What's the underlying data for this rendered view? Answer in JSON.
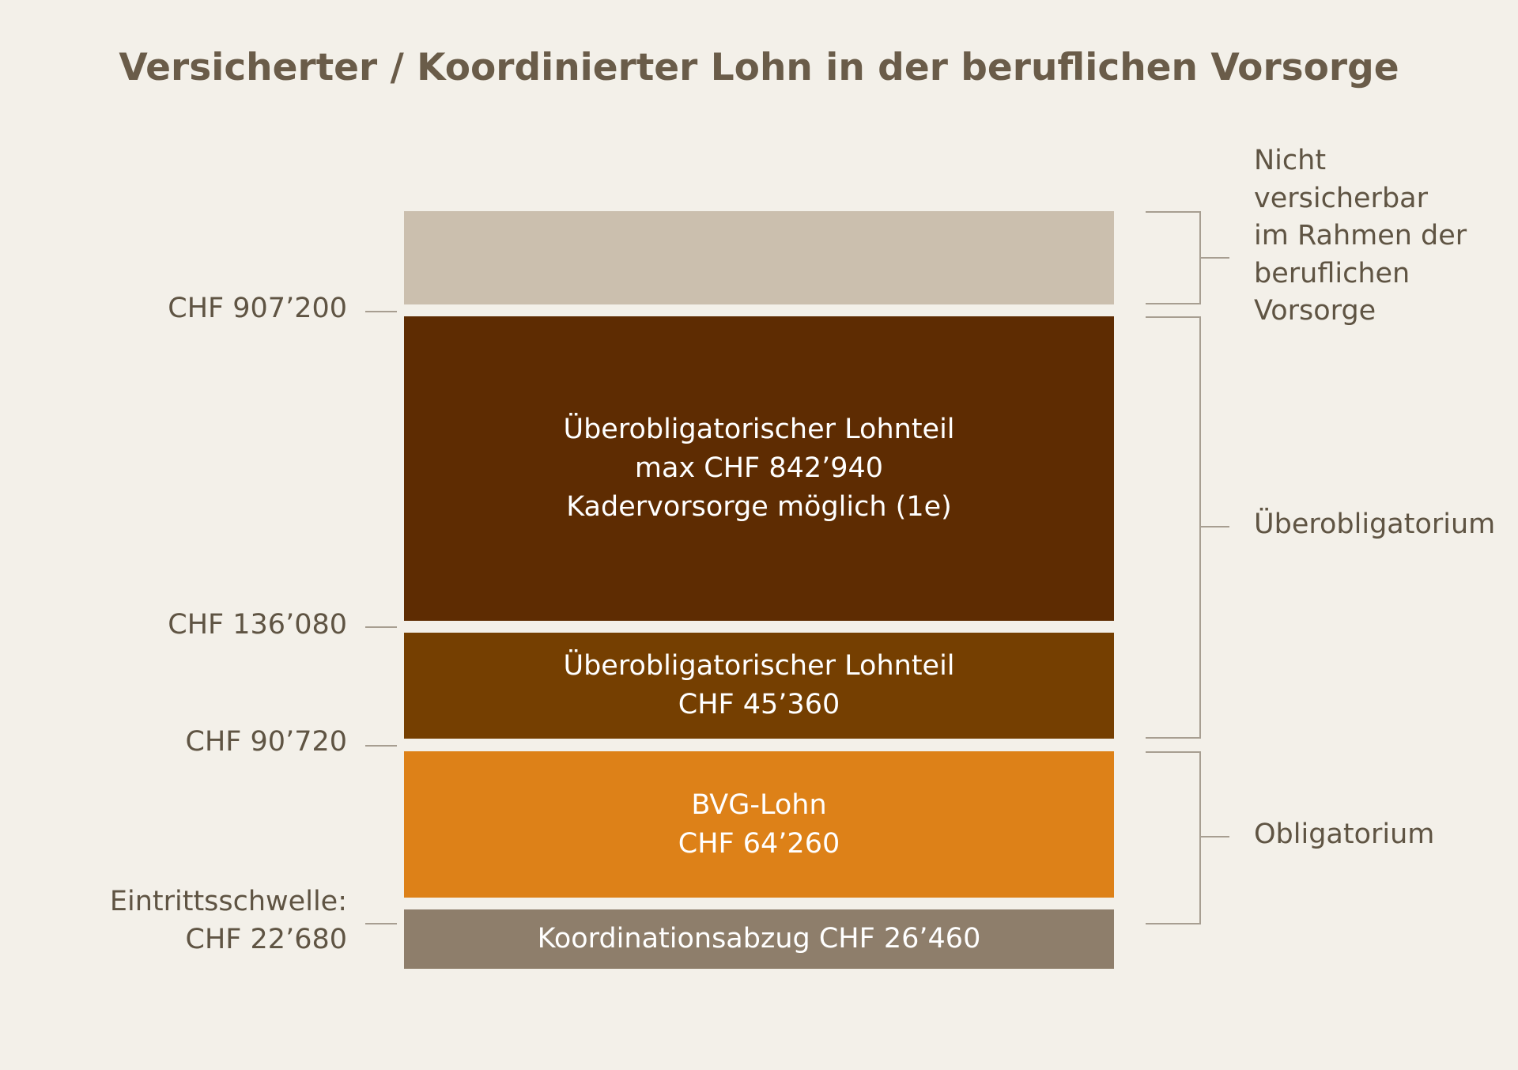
{
  "title": "Versicherter / Koordinierter Lohn in der beruflichen Vorsorge",
  "blocks": {
    "top": {
      "color": "#cbbfae"
    },
    "ueberobligatorisch_gross": {
      "color": "#5e2c02",
      "line1": "Überobligatorischer Lohnteil",
      "line2": "max CHF 842’940",
      "line3": "Kadervorsorge möglich (1e)"
    },
    "ueberobligatorisch_klein": {
      "color": "#753f01",
      "line1": "Überobligatorischer Lohnteil",
      "line2": "CHF 45’360"
    },
    "bvg": {
      "color": "#dd8118",
      "line1": "BVG-Lohn",
      "line2": "CHF 64’260"
    },
    "koordination": {
      "color": "#8e7e6b",
      "line1": "Koordinationsabzug CHF 26’460"
    }
  },
  "thresholds": {
    "t1": "CHF 907’200",
    "t2": "CHF 136’080",
    "t3": "CHF 90’720",
    "t4_line1": "Eintrittsschwelle:",
    "t4_line2": "CHF 22’680"
  },
  "brackets": {
    "nicht_versicherbar": [
      "Nicht",
      "versicherbar",
      "im Rahmen der",
      "beruflichen",
      "Vorsorge"
    ],
    "ueberobligatorium": "Überobligatorium",
    "obligatorium": "Obligatorium"
  }
}
